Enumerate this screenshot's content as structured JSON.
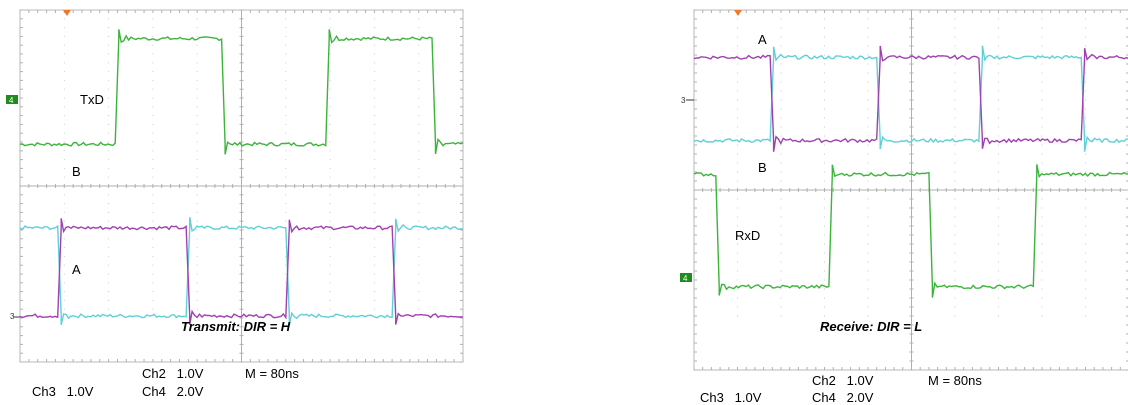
{
  "chart_data": [
    {
      "type": "line",
      "title": "Transmit: DIR = H",
      "time_per_division": "80ns",
      "x_divisions": 10,
      "y_divisions": 8,
      "measurements": {
        "ch2": "Ch2   1.0V",
        "ch3": "Ch3   1.0V",
        "ch4": "Ch4   2.0V",
        "timebase": "M = 80ns"
      },
      "channel_markers": {
        "ch4": "4",
        "ch3": "3"
      },
      "series": [
        {
          "name": "TxD",
          "color": "#3cb43c",
          "low": 0.95,
          "high": 3.35,
          "transitions": [
            2.15,
            4.55,
            6.9,
            9.3
          ],
          "start_high": false
        },
        {
          "name": "B",
          "color": "#5fd0d8",
          "low": -2.95,
          "high": -0.95,
          "transitions": [
            0.85,
            3.75,
            6.0,
            8.4
          ],
          "start_high": true
        },
        {
          "name": "A",
          "color": "#a040b0",
          "low": -2.95,
          "high": -0.95,
          "transitions": [
            0.85,
            3.75,
            6.0,
            8.4
          ],
          "start_high": false
        }
      ],
      "labels": {
        "txd": "TxD",
        "b": "B",
        "a": "A"
      }
    },
    {
      "type": "line",
      "title": "Receive: DIR = L",
      "time_per_division": "80ns",
      "x_divisions": 10,
      "y_divisions": 8,
      "measurements": {
        "ch2": "Ch2   1.0V",
        "ch3": "Ch3   1.0V",
        "ch4": "Ch4   2.0V",
        "timebase": "M = 80ns"
      },
      "channel_markers": {
        "ch4": "4",
        "ch3": "3"
      },
      "series": [
        {
          "name": "A",
          "color": "#5fd0d8",
          "low": 1.1,
          "high": 2.95,
          "transitions": [
            1.75,
            4.2,
            6.55,
            8.9
          ],
          "start_high": false
        },
        {
          "name": "B",
          "color": "#a040b0",
          "low": 1.1,
          "high": 2.95,
          "transitions": [
            1.75,
            4.2,
            6.55,
            8.9
          ],
          "start_high": true
        },
        {
          "name": "RxD",
          "color": "#3cb43c",
          "low": -2.15,
          "high": 0.35,
          "transitions": [
            0.5,
            3.1,
            5.4,
            7.8
          ],
          "start_high": true
        }
      ],
      "labels": {
        "a": "A",
        "b": "B",
        "rxd": "RxD"
      }
    }
  ]
}
